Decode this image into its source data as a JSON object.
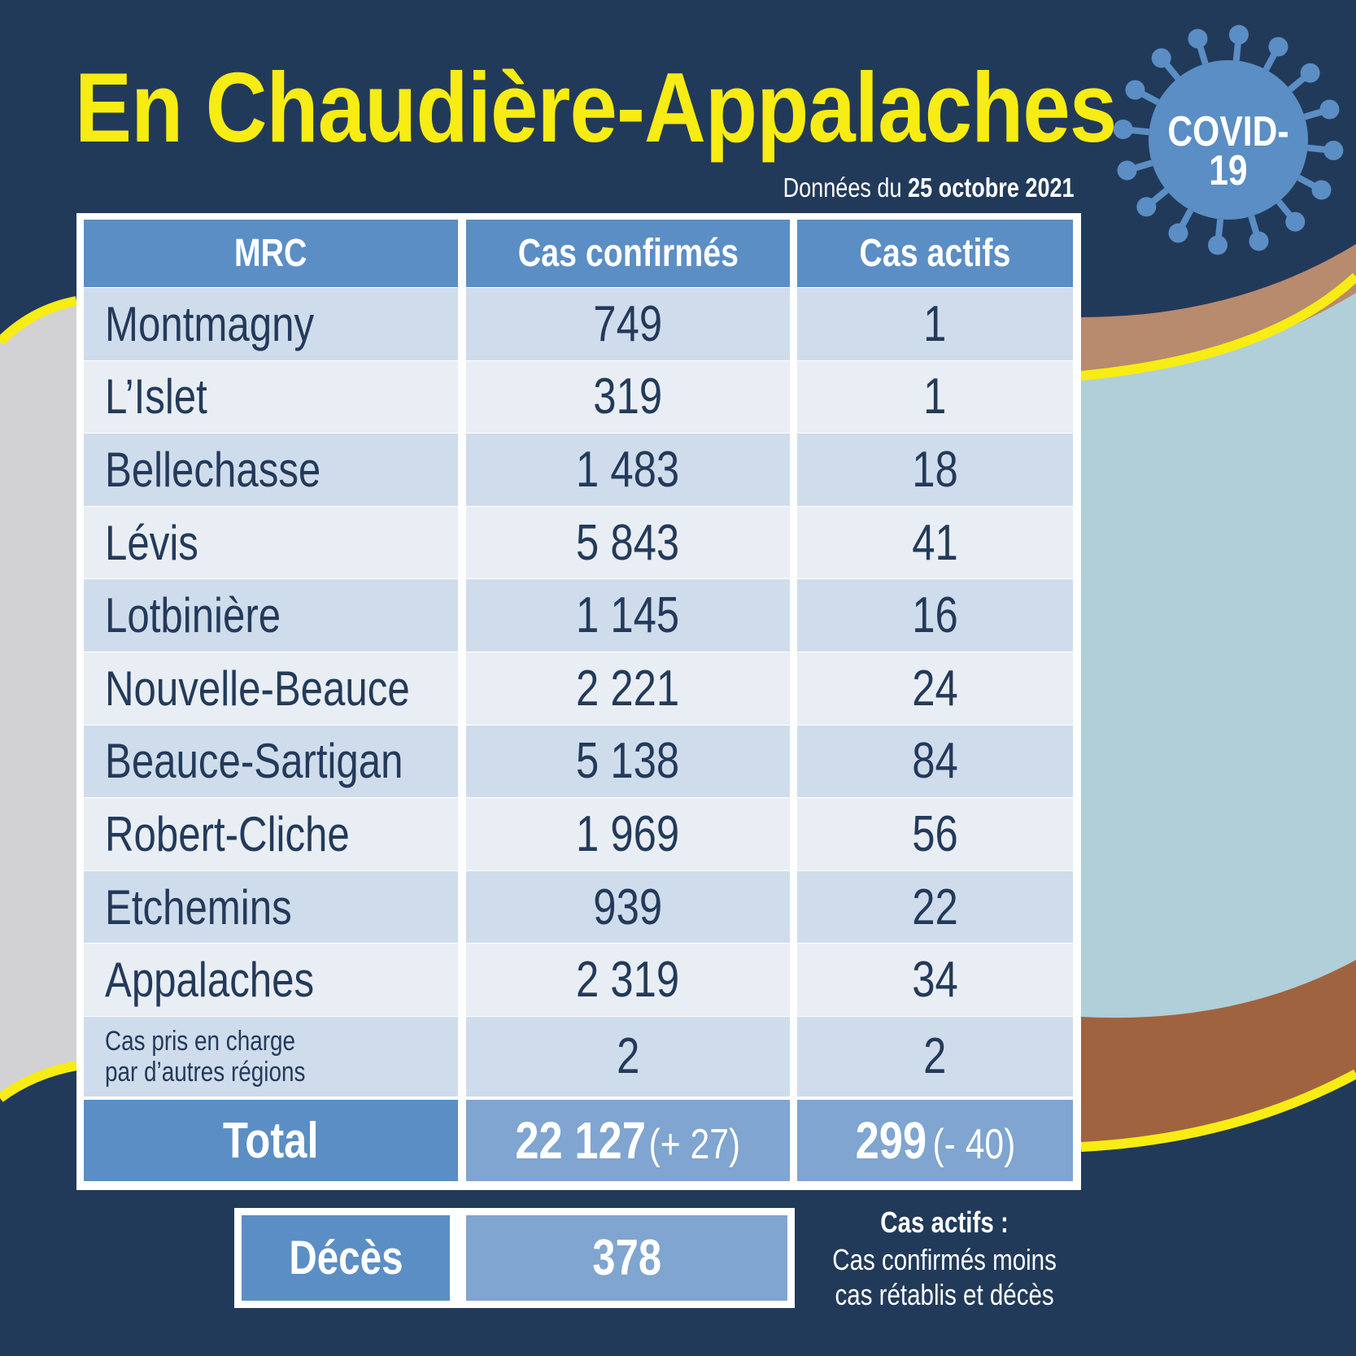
{
  "title": "En Chaudière-Appalaches",
  "date": {
    "prefix": "Données du ",
    "value": "25 octobre 2021"
  },
  "badge": {
    "line1": "COVID-",
    "line2": "19",
    "icon": "virus-icon"
  },
  "headers": [
    "MRC",
    "Cas confirmés",
    "Cas actifs"
  ],
  "rows": [
    {
      "mrc": "Montmagny",
      "confirmed": "749",
      "active": "1"
    },
    {
      "mrc": "L’Islet",
      "confirmed": "319",
      "active": "1"
    },
    {
      "mrc": "Bellechasse",
      "confirmed": "1 483",
      "active": "18"
    },
    {
      "mrc": "Lévis",
      "confirmed": "5 843",
      "active": "41"
    },
    {
      "mrc": "Lotbinière",
      "confirmed": "1 145",
      "active": "16"
    },
    {
      "mrc": "Nouvelle-Beauce",
      "confirmed": "2 221",
      "active": "24"
    },
    {
      "mrc": "Beauce-Sartigan",
      "confirmed": "5 138",
      "active": "84"
    },
    {
      "mrc": "Robert-Cliche",
      "confirmed": "1 969",
      "active": "56"
    },
    {
      "mrc": "Etchemins",
      "confirmed": "939",
      "active": "22"
    },
    {
      "mrc": "Appalaches",
      "confirmed": "2 319",
      "active": "34"
    },
    {
      "mrc": "Cas pris en charge\npar d’autres régions",
      "confirmed": "2",
      "active": "2"
    }
  ],
  "total": {
    "label": "Total",
    "confirmed": "22 127",
    "confirmed_change": "(+ 27)",
    "active": "299",
    "active_change": "(- 40)"
  },
  "deaths": {
    "label": "Décès",
    "value": "378"
  },
  "note": {
    "title": "Cas actifs :",
    "line1": "Cas confirmés moins",
    "line2": "cas rétablis et décès"
  },
  "colors": {
    "background": "#223a5a",
    "title": "#f7ec13",
    "header": "#5b8ec4",
    "total": "#7fa5d0",
    "row_dark": "#cfdcec",
    "row_light": "#e9eef5",
    "text": "#233a5a"
  }
}
